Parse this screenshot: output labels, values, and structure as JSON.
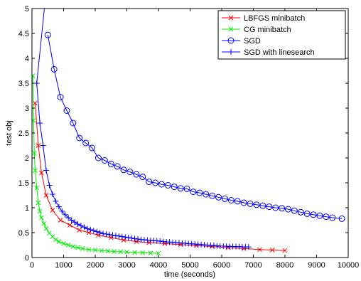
{
  "chart_data": {
    "type": "line",
    "title": "",
    "xlabel": "time (seconds)",
    "ylabel": "test obj",
    "xlim": [
      0,
      10000
    ],
    "ylim": [
      0,
      5
    ],
    "xticks": [
      0,
      1000,
      2000,
      3000,
      4000,
      5000,
      6000,
      7000,
      8000,
      9000,
      10000
    ],
    "yticks": [
      0,
      0.5,
      1,
      1.5,
      2,
      2.5,
      3,
      3.5,
      4,
      4.5,
      5
    ],
    "xtick_labels": [
      "0",
      "1000",
      "2000",
      "3000",
      "4000",
      "5000",
      "6000",
      "7000",
      "8000",
      "9000",
      "10000"
    ],
    "ytick_labels": [
      "0",
      "0.5",
      "1",
      "1.5",
      "2",
      "2.5",
      "3",
      "3.5",
      "4",
      "4.5",
      "5"
    ],
    "grid": false,
    "legend_position": "top-right",
    "series": [
      {
        "name": "LBFGS minibatch",
        "color": "#ff0000",
        "marker": "x",
        "x": [
          100,
          200,
          300,
          450,
          650,
          900,
          1200,
          1500,
          1800,
          2100,
          2500,
          2900,
          3300,
          3700,
          4200,
          4700,
          5200,
          5700,
          6200,
          6700,
          7200,
          7600,
          8000
        ],
        "y": [
          3.1,
          2.25,
          1.7,
          1.25,
          0.95,
          0.75,
          0.65,
          0.55,
          0.5,
          0.45,
          0.4,
          0.35,
          0.32,
          0.3,
          0.28,
          0.26,
          0.24,
          0.22,
          0.2,
          0.18,
          0.16,
          0.15,
          0.14
        ]
      },
      {
        "name": "CG minibatch",
        "color": "#00ee00",
        "marker": "x",
        "x": [
          25,
          50,
          75,
          100,
          150,
          200,
          250,
          300,
          375,
          450,
          550,
          650,
          750,
          850,
          1000,
          1150,
          1300,
          1450,
          1600,
          1800,
          2000,
          2200,
          2400,
          2600,
          2800,
          3000,
          3250,
          3500,
          3750,
          4000
        ],
        "y": [
          3.65,
          2.75,
          2.1,
          1.75,
          1.4,
          1.1,
          0.93,
          0.8,
          0.68,
          0.58,
          0.49,
          0.42,
          0.36,
          0.32,
          0.28,
          0.25,
          0.22,
          0.2,
          0.18,
          0.16,
          0.15,
          0.14,
          0.13,
          0.12,
          0.115,
          0.11,
          0.1,
          0.095,
          0.09,
          0.085
        ]
      },
      {
        "name": "SGD",
        "color": "#0000ff",
        "marker": "o",
        "x": [
          500,
          700,
          900,
          1100,
          1300,
          1500,
          1700,
          1900,
          2100,
          2300,
          2500,
          2700,
          2900,
          3100,
          3300,
          3500,
          3700,
          3900,
          4100,
          4300,
          4500,
          4700,
          4900,
          5100,
          5300,
          5500,
          5700,
          5900,
          6100,
          6300,
          6500,
          6700,
          6900,
          7100,
          7300,
          7500,
          7700,
          7900,
          8100,
          8300,
          8500,
          8700,
          8900,
          9100,
          9300,
          9500,
          9800
        ],
        "y": [
          4.47,
          3.78,
          3.22,
          2.95,
          2.7,
          2.4,
          2.3,
          2.2,
          2.0,
          1.95,
          1.88,
          1.83,
          1.76,
          1.72,
          1.67,
          1.62,
          1.52,
          1.5,
          1.47,
          1.45,
          1.42,
          1.39,
          1.38,
          1.32,
          1.3,
          1.27,
          1.24,
          1.21,
          1.18,
          1.15,
          1.13,
          1.1,
          1.08,
          1.06,
          1.04,
          1.02,
          1.0,
          0.99,
          0.97,
          0.94,
          0.91,
          0.88,
          0.86,
          0.84,
          0.82,
          0.8,
          0.78
        ]
      },
      {
        "name": "SGD with linesearch",
        "color": "#0000ff",
        "marker": "+",
        "x": [
          400,
          150,
          250,
          350,
          450,
          550,
          650,
          750,
          850,
          950,
          1050,
          1150,
          1250,
          1350,
          1450,
          1550,
          1650,
          1750,
          1850,
          1950,
          2050,
          2150,
          2250,
          2350,
          2450,
          2550,
          2650,
          2750,
          2850,
          2950,
          3050,
          3150,
          3250,
          3350,
          3450,
          3550,
          3650,
          3750,
          3850,
          3950,
          4050,
          4150,
          4250,
          4350,
          4450,
          4550,
          4650,
          4750,
          4850,
          4950,
          5050,
          5150,
          5250,
          5350,
          5450,
          5550,
          5650,
          5750,
          5850,
          5950,
          6050,
          6150,
          6250,
          6350,
          6450,
          6550,
          6650,
          6750,
          6850
        ],
        "y": [
          5.05,
          3.5,
          2.7,
          2.25,
          1.75,
          1.45,
          1.27,
          1.13,
          1.02,
          0.93,
          0.86,
          0.8,
          0.75,
          0.71,
          0.67,
          0.64,
          0.61,
          0.58,
          0.56,
          0.54,
          0.52,
          0.5,
          0.48,
          0.47,
          0.46,
          0.45,
          0.44,
          0.43,
          0.42,
          0.41,
          0.4,
          0.39,
          0.38,
          0.37,
          0.36,
          0.355,
          0.35,
          0.345,
          0.34,
          0.335,
          0.33,
          0.32,
          0.315,
          0.31,
          0.305,
          0.3,
          0.295,
          0.29,
          0.285,
          0.28,
          0.275,
          0.27,
          0.265,
          0.26,
          0.255,
          0.25,
          0.245,
          0.24,
          0.235,
          0.23,
          0.228,
          0.226,
          0.224,
          0.222,
          0.22,
          0.218,
          0.216,
          0.214,
          0.212
        ]
      }
    ]
  }
}
